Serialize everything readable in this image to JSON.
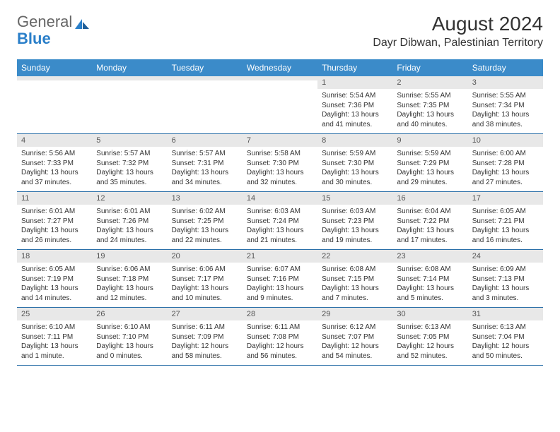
{
  "logo": {
    "text1": "General",
    "text2": "Blue"
  },
  "title": "August 2024",
  "location": "Dayr Dibwan, Palestinian Territory",
  "colors": {
    "header_bg": "#3b8bc9",
    "header_text": "#ffffff",
    "daynum_bg": "#e8e8e8",
    "border": "#2a6fa8",
    "body_text": "#333333",
    "logo_gray": "#666666",
    "logo_blue": "#2a7fc9"
  },
  "weekdays": [
    "Sunday",
    "Monday",
    "Tuesday",
    "Wednesday",
    "Thursday",
    "Friday",
    "Saturday"
  ],
  "weeks": [
    [
      {
        "day": "",
        "sunrise": "",
        "sunset": "",
        "daylight": ""
      },
      {
        "day": "",
        "sunrise": "",
        "sunset": "",
        "daylight": ""
      },
      {
        "day": "",
        "sunrise": "",
        "sunset": "",
        "daylight": ""
      },
      {
        "day": "",
        "sunrise": "",
        "sunset": "",
        "daylight": ""
      },
      {
        "day": "1",
        "sunrise": "Sunrise: 5:54 AM",
        "sunset": "Sunset: 7:36 PM",
        "daylight": "Daylight: 13 hours and 41 minutes."
      },
      {
        "day": "2",
        "sunrise": "Sunrise: 5:55 AM",
        "sunset": "Sunset: 7:35 PM",
        "daylight": "Daylight: 13 hours and 40 minutes."
      },
      {
        "day": "3",
        "sunrise": "Sunrise: 5:55 AM",
        "sunset": "Sunset: 7:34 PM",
        "daylight": "Daylight: 13 hours and 38 minutes."
      }
    ],
    [
      {
        "day": "4",
        "sunrise": "Sunrise: 5:56 AM",
        "sunset": "Sunset: 7:33 PM",
        "daylight": "Daylight: 13 hours and 37 minutes."
      },
      {
        "day": "5",
        "sunrise": "Sunrise: 5:57 AM",
        "sunset": "Sunset: 7:32 PM",
        "daylight": "Daylight: 13 hours and 35 minutes."
      },
      {
        "day": "6",
        "sunrise": "Sunrise: 5:57 AM",
        "sunset": "Sunset: 7:31 PM",
        "daylight": "Daylight: 13 hours and 34 minutes."
      },
      {
        "day": "7",
        "sunrise": "Sunrise: 5:58 AM",
        "sunset": "Sunset: 7:30 PM",
        "daylight": "Daylight: 13 hours and 32 minutes."
      },
      {
        "day": "8",
        "sunrise": "Sunrise: 5:59 AM",
        "sunset": "Sunset: 7:30 PM",
        "daylight": "Daylight: 13 hours and 30 minutes."
      },
      {
        "day": "9",
        "sunrise": "Sunrise: 5:59 AM",
        "sunset": "Sunset: 7:29 PM",
        "daylight": "Daylight: 13 hours and 29 minutes."
      },
      {
        "day": "10",
        "sunrise": "Sunrise: 6:00 AM",
        "sunset": "Sunset: 7:28 PM",
        "daylight": "Daylight: 13 hours and 27 minutes."
      }
    ],
    [
      {
        "day": "11",
        "sunrise": "Sunrise: 6:01 AM",
        "sunset": "Sunset: 7:27 PM",
        "daylight": "Daylight: 13 hours and 26 minutes."
      },
      {
        "day": "12",
        "sunrise": "Sunrise: 6:01 AM",
        "sunset": "Sunset: 7:26 PM",
        "daylight": "Daylight: 13 hours and 24 minutes."
      },
      {
        "day": "13",
        "sunrise": "Sunrise: 6:02 AM",
        "sunset": "Sunset: 7:25 PM",
        "daylight": "Daylight: 13 hours and 22 minutes."
      },
      {
        "day": "14",
        "sunrise": "Sunrise: 6:03 AM",
        "sunset": "Sunset: 7:24 PM",
        "daylight": "Daylight: 13 hours and 21 minutes."
      },
      {
        "day": "15",
        "sunrise": "Sunrise: 6:03 AM",
        "sunset": "Sunset: 7:23 PM",
        "daylight": "Daylight: 13 hours and 19 minutes."
      },
      {
        "day": "16",
        "sunrise": "Sunrise: 6:04 AM",
        "sunset": "Sunset: 7:22 PM",
        "daylight": "Daylight: 13 hours and 17 minutes."
      },
      {
        "day": "17",
        "sunrise": "Sunrise: 6:05 AM",
        "sunset": "Sunset: 7:21 PM",
        "daylight": "Daylight: 13 hours and 16 minutes."
      }
    ],
    [
      {
        "day": "18",
        "sunrise": "Sunrise: 6:05 AM",
        "sunset": "Sunset: 7:19 PM",
        "daylight": "Daylight: 13 hours and 14 minutes."
      },
      {
        "day": "19",
        "sunrise": "Sunrise: 6:06 AM",
        "sunset": "Sunset: 7:18 PM",
        "daylight": "Daylight: 13 hours and 12 minutes."
      },
      {
        "day": "20",
        "sunrise": "Sunrise: 6:06 AM",
        "sunset": "Sunset: 7:17 PM",
        "daylight": "Daylight: 13 hours and 10 minutes."
      },
      {
        "day": "21",
        "sunrise": "Sunrise: 6:07 AM",
        "sunset": "Sunset: 7:16 PM",
        "daylight": "Daylight: 13 hours and 9 minutes."
      },
      {
        "day": "22",
        "sunrise": "Sunrise: 6:08 AM",
        "sunset": "Sunset: 7:15 PM",
        "daylight": "Daylight: 13 hours and 7 minutes."
      },
      {
        "day": "23",
        "sunrise": "Sunrise: 6:08 AM",
        "sunset": "Sunset: 7:14 PM",
        "daylight": "Daylight: 13 hours and 5 minutes."
      },
      {
        "day": "24",
        "sunrise": "Sunrise: 6:09 AM",
        "sunset": "Sunset: 7:13 PM",
        "daylight": "Daylight: 13 hours and 3 minutes."
      }
    ],
    [
      {
        "day": "25",
        "sunrise": "Sunrise: 6:10 AM",
        "sunset": "Sunset: 7:11 PM",
        "daylight": "Daylight: 13 hours and 1 minute."
      },
      {
        "day": "26",
        "sunrise": "Sunrise: 6:10 AM",
        "sunset": "Sunset: 7:10 PM",
        "daylight": "Daylight: 13 hours and 0 minutes."
      },
      {
        "day": "27",
        "sunrise": "Sunrise: 6:11 AM",
        "sunset": "Sunset: 7:09 PM",
        "daylight": "Daylight: 12 hours and 58 minutes."
      },
      {
        "day": "28",
        "sunrise": "Sunrise: 6:11 AM",
        "sunset": "Sunset: 7:08 PM",
        "daylight": "Daylight: 12 hours and 56 minutes."
      },
      {
        "day": "29",
        "sunrise": "Sunrise: 6:12 AM",
        "sunset": "Sunset: 7:07 PM",
        "daylight": "Daylight: 12 hours and 54 minutes."
      },
      {
        "day": "30",
        "sunrise": "Sunrise: 6:13 AM",
        "sunset": "Sunset: 7:05 PM",
        "daylight": "Daylight: 12 hours and 52 minutes."
      },
      {
        "day": "31",
        "sunrise": "Sunrise: 6:13 AM",
        "sunset": "Sunset: 7:04 PM",
        "daylight": "Daylight: 12 hours and 50 minutes."
      }
    ]
  ]
}
